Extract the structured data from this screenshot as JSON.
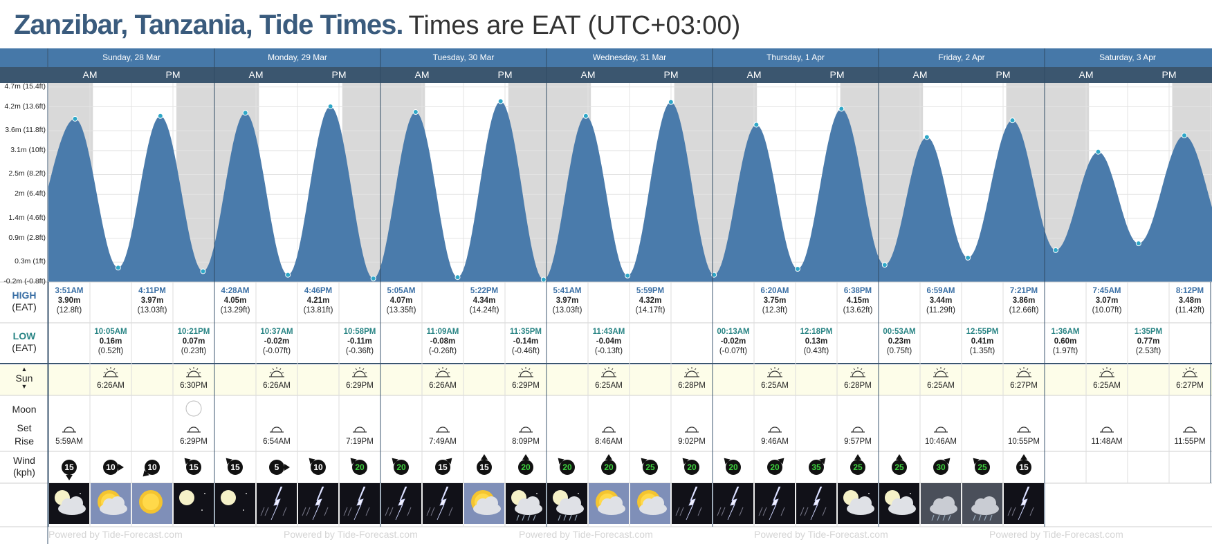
{
  "header": {
    "place": "Zanzibar, Tanzania, Tide Times.",
    "timezone": "Times are EAT (UTC+03:00)"
  },
  "colors": {
    "header_bar": "#4678a8",
    "subheader_bar": "#3b566f",
    "tide_fill": "#4a7bab",
    "night_shade": "#d9d9d9",
    "sun_row_bg": "#fdfde9",
    "high_time": "#3a6fa5",
    "low_time": "#2a8585"
  },
  "days": [
    {
      "label": "Sunday, 28 Mar",
      "am": "AM",
      "pm": "PM"
    },
    {
      "label": "Monday, 29 Mar",
      "am": "AM",
      "pm": "PM"
    },
    {
      "label": "Tuesday, 30 Mar",
      "am": "AM",
      "pm": "PM"
    },
    {
      "label": "Wednesday, 31 Mar",
      "am": "AM",
      "pm": "PM"
    },
    {
      "label": "Thursday, 1 Apr",
      "am": "AM",
      "pm": "PM"
    },
    {
      "label": "Friday, 2 Apr",
      "am": "AM",
      "pm": "PM"
    },
    {
      "label": "Saturday, 3 Apr",
      "am": "AM",
      "pm": "PM"
    }
  ],
  "chart_data": {
    "type": "area",
    "title": "Zanzibar, Tanzania, Tide Times.",
    "ylabel": "",
    "ylim": [
      -0.2,
      4.8
    ],
    "y_ticks": [
      {
        "value": 4.7,
        "label": "4.7m (15.4ft)"
      },
      {
        "value": 4.2,
        "label": "4.2m (13.6ft)"
      },
      {
        "value": 3.6,
        "label": "3.6m (11.8ft)"
      },
      {
        "value": 3.1,
        "label": "3.1m (10ft)"
      },
      {
        "value": 2.5,
        "label": "2.5m (8.2ft)"
      },
      {
        "value": 2.0,
        "label": "2m (6.4ft)"
      },
      {
        "value": 1.4,
        "label": "1.4m (4.6ft)"
      },
      {
        "value": 0.9,
        "label": "0.9m (2.8ft)"
      },
      {
        "value": 0.3,
        "label": "0.3m (1ft)"
      },
      {
        "value": -0.2,
        "label": "-0.2m (-0.8ft)"
      }
    ],
    "series": [
      {
        "points": [
          {
            "day": 0,
            "time": "3:51AM",
            "value": 3.9
          },
          {
            "day": 0,
            "time": "10:05AM",
            "value": 0.16
          },
          {
            "day": 0,
            "time": "4:11PM",
            "value": 3.97
          },
          {
            "day": 0,
            "time": "10:21PM",
            "value": 0.07
          },
          {
            "day": 1,
            "time": "4:28AM",
            "value": 4.05
          },
          {
            "day": 1,
            "time": "10:37AM",
            "value": -0.02
          },
          {
            "day": 1,
            "time": "4:46PM",
            "value": 4.21
          },
          {
            "day": 1,
            "time": "10:58PM",
            "value": -0.11
          },
          {
            "day": 2,
            "time": "5:05AM",
            "value": 4.07
          },
          {
            "day": 2,
            "time": "11:09AM",
            "value": -0.08
          },
          {
            "day": 2,
            "time": "5:22PM",
            "value": 4.34
          },
          {
            "day": 2,
            "time": "11:35PM",
            "value": -0.14
          },
          {
            "day": 3,
            "time": "5:41AM",
            "value": 3.97
          },
          {
            "day": 3,
            "time": "11:43AM",
            "value": -0.04
          },
          {
            "day": 3,
            "time": "5:59PM",
            "value": 4.32
          },
          {
            "day": 4,
            "time": "00:13AM",
            "value": -0.02
          },
          {
            "day": 4,
            "time": "6:20AM",
            "value": 3.75
          },
          {
            "day": 4,
            "time": "12:18PM",
            "value": 0.13
          },
          {
            "day": 4,
            "time": "6:38PM",
            "value": 4.15
          },
          {
            "day": 5,
            "time": "00:53AM",
            "value": 0.23
          },
          {
            "day": 5,
            "time": "6:59AM",
            "value": 3.44
          },
          {
            "day": 5,
            "time": "12:55PM",
            "value": 0.41
          },
          {
            "day": 5,
            "time": "7:21PM",
            "value": 3.86
          },
          {
            "day": 6,
            "time": "1:36AM",
            "value": 0.6
          },
          {
            "day": 6,
            "time": "7:45AM",
            "value": 3.07
          },
          {
            "day": 6,
            "time": "1:35PM",
            "value": 0.77
          },
          {
            "day": 6,
            "time": "8:12PM",
            "value": 3.48
          }
        ]
      }
    ],
    "grid": true
  },
  "high_row": {
    "label1": "HIGH",
    "label2": "(EAT)",
    "cells": [
      {
        "day": 0,
        "half": 0,
        "time": "3:51AM",
        "m": "3.90m",
        "ft": "(12.8ft)"
      },
      {
        "day": 0,
        "half": 2,
        "time": "4:11PM",
        "m": "3.97m",
        "ft": "(13.03ft)"
      },
      {
        "day": 1,
        "half": 0,
        "time": "4:28AM",
        "m": "4.05m",
        "ft": "(13.29ft)"
      },
      {
        "day": 1,
        "half": 2,
        "time": "4:46PM",
        "m": "4.21m",
        "ft": "(13.81ft)"
      },
      {
        "day": 2,
        "half": 0,
        "time": "5:05AM",
        "m": "4.07m",
        "ft": "(13.35ft)"
      },
      {
        "day": 2,
        "half": 2,
        "time": "5:22PM",
        "m": "4.34m",
        "ft": "(14.24ft)"
      },
      {
        "day": 3,
        "half": 0,
        "time": "5:41AM",
        "m": "3.97m",
        "ft": "(13.03ft)"
      },
      {
        "day": 3,
        "half": 2,
        "time": "5:59PM",
        "m": "4.32m",
        "ft": "(14.17ft)"
      },
      {
        "day": 4,
        "half": 1,
        "time": "6:20AM",
        "m": "3.75m",
        "ft": "(12.3ft)"
      },
      {
        "day": 4,
        "half": 3,
        "time": "6:38PM",
        "m": "4.15m",
        "ft": "(13.62ft)"
      },
      {
        "day": 5,
        "half": 1,
        "time": "6:59AM",
        "m": "3.44m",
        "ft": "(11.29ft)"
      },
      {
        "day": 5,
        "half": 3,
        "time": "7:21PM",
        "m": "3.86m",
        "ft": "(12.66ft)"
      },
      {
        "day": 6,
        "half": 1,
        "time": "7:45AM",
        "m": "3.07m",
        "ft": "(10.07ft)"
      },
      {
        "day": 6,
        "half": 3,
        "time": "8:12PM",
        "m": "3.48m",
        "ft": "(11.42ft)"
      }
    ]
  },
  "low_row": {
    "label1": "LOW",
    "label2": "(EAT)",
    "cells": [
      {
        "day": 0,
        "half": 1,
        "time": "10:05AM",
        "m": "0.16m",
        "ft": "(0.52ft)"
      },
      {
        "day": 0,
        "half": 3,
        "time": "10:21PM",
        "m": "0.07m",
        "ft": "(0.23ft)"
      },
      {
        "day": 1,
        "half": 1,
        "time": "10:37AM",
        "m": "-0.02m",
        "ft": "(-0.07ft)"
      },
      {
        "day": 1,
        "half": 3,
        "time": "10:58PM",
        "m": "-0.11m",
        "ft": "(-0.36ft)"
      },
      {
        "day": 2,
        "half": 1,
        "time": "11:09AM",
        "m": "-0.08m",
        "ft": "(-0.26ft)"
      },
      {
        "day": 2,
        "half": 3,
        "time": "11:35PM",
        "m": "-0.14m",
        "ft": "(-0.46ft)"
      },
      {
        "day": 3,
        "half": 1,
        "time": "11:43AM",
        "m": "-0.04m",
        "ft": "(-0.13ft)"
      },
      {
        "day": 4,
        "half": 0,
        "time": "00:13AM",
        "m": "-0.02m",
        "ft": "(-0.07ft)"
      },
      {
        "day": 4,
        "half": 2,
        "time": "12:18PM",
        "m": "0.13m",
        "ft": "(0.43ft)"
      },
      {
        "day": 5,
        "half": 0,
        "time": "00:53AM",
        "m": "0.23m",
        "ft": "(0.75ft)"
      },
      {
        "day": 5,
        "half": 2,
        "time": "12:55PM",
        "m": "0.41m",
        "ft": "(1.35ft)"
      },
      {
        "day": 6,
        "half": 0,
        "time": "1:36AM",
        "m": "0.60m",
        "ft": "(1.97ft)"
      },
      {
        "day": 6,
        "half": 2,
        "time": "1:35PM",
        "m": "0.77m",
        "ft": "(2.53ft)"
      }
    ]
  },
  "sun_row": {
    "label": "Sun",
    "cells": [
      {
        "day": 0,
        "half": 1,
        "time": "6:26AM",
        "kind": "rise"
      },
      {
        "day": 0,
        "half": 3,
        "time": "6:30PM",
        "kind": "set"
      },
      {
        "day": 1,
        "half": 1,
        "time": "6:26AM",
        "kind": "rise"
      },
      {
        "day": 1,
        "half": 3,
        "time": "6:29PM",
        "kind": "set"
      },
      {
        "day": 2,
        "half": 1,
        "time": "6:26AM",
        "kind": "rise"
      },
      {
        "day": 2,
        "half": 3,
        "time": "6:29PM",
        "kind": "set"
      },
      {
        "day": 3,
        "half": 1,
        "time": "6:25AM",
        "kind": "rise"
      },
      {
        "day": 3,
        "half": 3,
        "time": "6:28PM",
        "kind": "set"
      },
      {
        "day": 4,
        "half": 1,
        "time": "6:25AM",
        "kind": "rise"
      },
      {
        "day": 4,
        "half": 3,
        "time": "6:28PM",
        "kind": "set"
      },
      {
        "day": 5,
        "half": 1,
        "time": "6:25AM",
        "kind": "rise"
      },
      {
        "day": 5,
        "half": 3,
        "time": "6:27PM",
        "kind": "set"
      },
      {
        "day": 6,
        "half": 1,
        "time": "6:25AM",
        "kind": "rise"
      },
      {
        "day": 6,
        "half": 3,
        "time": "6:27PM",
        "kind": "set"
      }
    ]
  },
  "moon_row": {
    "label1": "Moon",
    "label2": "Set",
    "label3": "Rise",
    "full_moon": {
      "day": 0,
      "half": 3
    },
    "cells": [
      {
        "day": 0,
        "half": 0,
        "time": "5:59AM"
      },
      {
        "day": 0,
        "half": 3,
        "time": "6:29PM"
      },
      {
        "day": 1,
        "half": 1,
        "time": "6:54AM"
      },
      {
        "day": 1,
        "half": 3,
        "time": "7:19PM"
      },
      {
        "day": 2,
        "half": 1,
        "time": "7:49AM"
      },
      {
        "day": 2,
        "half": 3,
        "time": "8:09PM"
      },
      {
        "day": 3,
        "half": 1,
        "time": "8:46AM"
      },
      {
        "day": 3,
        "half": 3,
        "time": "9:02PM"
      },
      {
        "day": 4,
        "half": 1,
        "time": "9:46AM"
      },
      {
        "day": 4,
        "half": 3,
        "time": "9:57PM"
      },
      {
        "day": 5,
        "half": 1,
        "time": "10:46AM"
      },
      {
        "day": 5,
        "half": 3,
        "time": "10:55PM"
      },
      {
        "day": 6,
        "half": 1,
        "time": "11:48AM"
      },
      {
        "day": 6,
        "half": 3,
        "time": "11:55PM"
      }
    ]
  },
  "wind_row": {
    "label1": "Wind",
    "label2": "(kph)",
    "cells": [
      {
        "speed": "15",
        "dir": "down",
        "green": false
      },
      {
        "speed": "10",
        "dir": "right",
        "green": false
      },
      {
        "speed": "10",
        "dir": "down-left",
        "green": false
      },
      {
        "speed": "15",
        "dir": "up-left",
        "green": false
      },
      {
        "speed": "15",
        "dir": "up-left",
        "green": false
      },
      {
        "speed": "5",
        "dir": "right",
        "green": false
      },
      {
        "speed": "10",
        "dir": "up-left",
        "green": false
      },
      {
        "speed": "20",
        "dir": "up-left",
        "green": true
      },
      {
        "speed": "20",
        "dir": "up-left",
        "green": true
      },
      {
        "speed": "15",
        "dir": "up-right",
        "green": false
      },
      {
        "speed": "15",
        "dir": "up",
        "green": false
      },
      {
        "speed": "20",
        "dir": "up",
        "green": true
      },
      {
        "speed": "20",
        "dir": "up-left",
        "green": true
      },
      {
        "speed": "20",
        "dir": "up",
        "green": true
      },
      {
        "speed": "25",
        "dir": "up-left",
        "green": true
      },
      {
        "speed": "20",
        "dir": "up-left",
        "green": true
      },
      {
        "speed": "20",
        "dir": "up-left",
        "green": true
      },
      {
        "speed": "20",
        "dir": "up-right",
        "green": true
      },
      {
        "speed": "35",
        "dir": "up-right",
        "green": true
      },
      {
        "speed": "25",
        "dir": "up",
        "green": true
      },
      {
        "speed": "25",
        "dir": "up",
        "green": true
      },
      {
        "speed": "30",
        "dir": "up-right",
        "green": true
      },
      {
        "speed": "25",
        "dir": "up-left",
        "green": true
      },
      {
        "speed": "15",
        "dir": "up",
        "green": false
      }
    ]
  },
  "weather_row": {
    "icons": [
      "cloudy-night-icon",
      "sunny-partly-cloudy-icon",
      "sunny-icon",
      "clear-night-icon",
      "clear-night-icon",
      "thunderstorm-icon",
      "thunderstorm-icon",
      "thunderstorm-icon",
      "thunderstorm-icon",
      "thunderstorm-icon",
      "sunny-partly-cloudy-icon",
      "cloudy-night-rain-icon",
      "cloudy-night-rain-icon",
      "sunny-partly-cloudy-icon",
      "sunny-partly-cloudy-icon",
      "thunderstorm-icon",
      "thunderstorm-icon",
      "thunderstorm-icon",
      "thunderstorm-icon",
      "partly-cloudy-night-icon",
      "partly-cloudy-night-icon",
      "rain-cloud-icon",
      "rain-cloud-icon",
      "thunderstorm-icon"
    ]
  },
  "footer": {
    "watermark": "Powered by Tide-Forecast.com"
  }
}
